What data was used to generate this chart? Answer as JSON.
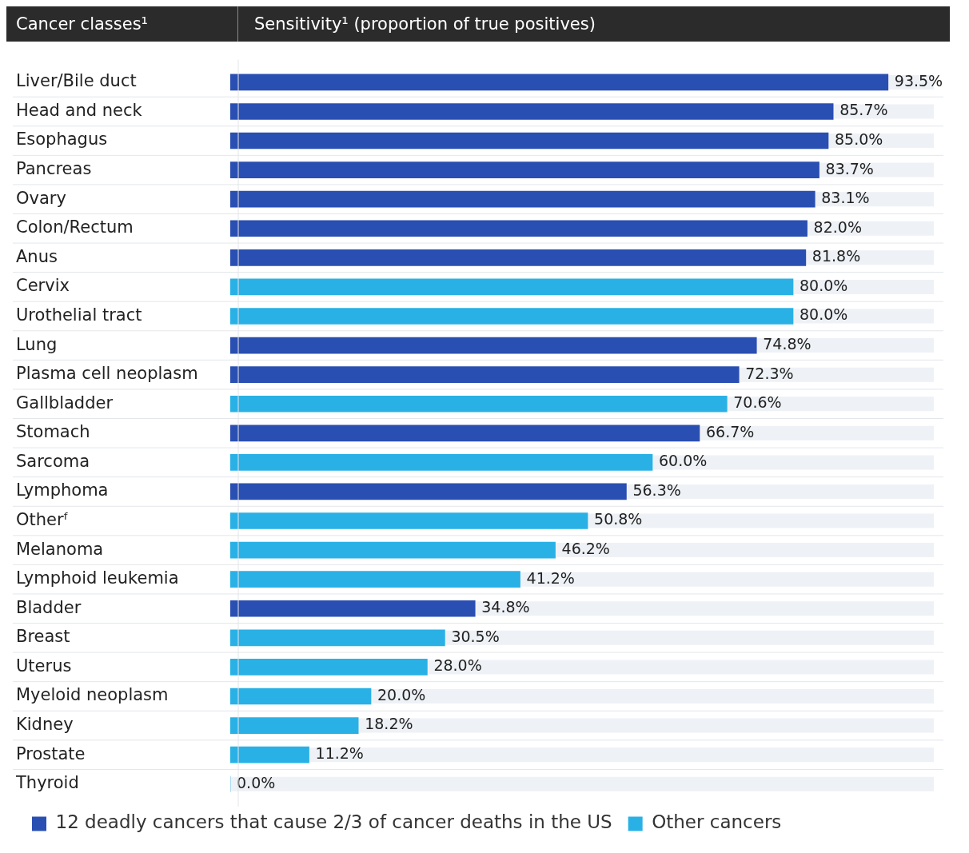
{
  "chart_data": {
    "type": "bar",
    "orientation": "horizontal",
    "stacked": true,
    "ylabel": "Cancer classes¹",
    "xlabel": "Sensitivity¹ (proportion of true positives)",
    "categories": [
      "Liver/Bile duct",
      "Head and neck",
      "Esophagus",
      "Pancreas",
      "Ovary",
      "Colon/Rectum",
      "Anus",
      "Cervix",
      "Urothelial tract",
      "Lung",
      "Plasma cell neoplasm",
      "Gallbladder",
      "Stomach",
      "Sarcoma",
      "Lymphoma",
      "Otherᶠ",
      "Melanoma",
      "Lymphoid leukemia",
      "Bladder",
      "Breast",
      "Uterus",
      "Myeloid neoplasm",
      "Kidney",
      "Prostate",
      "Thyroid"
    ],
    "series": [
      {
        "name": "12 deadly cancers that cause 2/3 of cancer deaths in the US",
        "color": "#2a4fb2",
        "values": [
          93.5,
          85.7,
          85.0,
          83.7,
          83.1,
          82.0,
          81.8,
          null,
          null,
          74.8,
          72.3,
          null,
          66.7,
          null,
          56.3,
          null,
          null,
          null,
          34.8,
          null,
          null,
          null,
          null,
          null,
          null
        ],
        "value_labels": [
          "93.5%",
          "85.7%",
          "85.0%",
          "83.7%",
          "83.1%",
          "82.0%",
          "81.8%",
          null,
          null,
          "74.8%",
          "72.3%",
          null,
          "66.7%",
          null,
          "56.3%",
          null,
          null,
          null,
          "34.8%",
          null,
          null,
          null,
          null,
          null,
          null
        ]
      },
      {
        "name": "Other cancers",
        "color": "#29b1e6",
        "values": [
          null,
          null,
          null,
          null,
          null,
          null,
          null,
          80.0,
          80.0,
          null,
          null,
          70.6,
          null,
          60.0,
          null,
          50.8,
          46.2,
          41.2,
          null,
          30.5,
          28.0,
          20.0,
          18.2,
          11.2,
          0.0
        ],
        "value_labels": [
          null,
          null,
          null,
          null,
          null,
          null,
          null,
          "80.0%",
          "80.0%",
          null,
          null,
          "70.6%",
          null,
          "60.0%",
          null,
          "50.8%",
          "46.2%",
          "41.2%",
          null,
          "30.5%",
          "28.0%",
          "20.0%",
          "18.2%",
          "11.2%",
          "0.0%"
        ]
      }
    ],
    "xlim": [
      0,
      100
    ],
    "tick_labels": "y",
    "grid": false,
    "legend": "bottom"
  }
}
